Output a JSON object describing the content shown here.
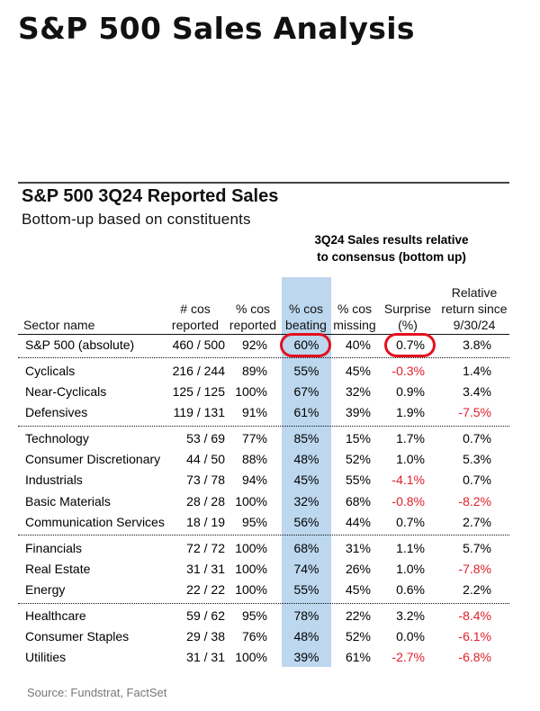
{
  "title": "S&P 500 Sales Analysis",
  "chart_data": {
    "type": "table",
    "title": "S&P 500 3Q24 Reported Sales",
    "subtitle": "Bottom-up based on constituents",
    "group_header": [
      "3Q24 Sales results relative",
      "to consensus (bottom up)"
    ],
    "columns": {
      "sector": [
        "Sector name"
      ],
      "reported": [
        "# cos",
        "reported"
      ],
      "pct_reported": [
        "% cos",
        "reported"
      ],
      "pct_beating": [
        "% cos",
        "beating"
      ],
      "pct_missing": [
        "% cos",
        "missing"
      ],
      "surprise": [
        "Surprise",
        "(%)"
      ],
      "rel_return": [
        "Relative",
        "return since",
        "9/30/24"
      ]
    },
    "highlighted_column": "pct_beating",
    "circled_cells": [
      {
        "row": 0,
        "column": "pct_beating"
      },
      {
        "row": 0,
        "column": "surprise"
      }
    ],
    "groups": [
      [
        {
          "sector": "S&P 500 (absolute)",
          "reported": "460 / 500",
          "pct_reported": "92%",
          "pct_beating": "60%",
          "pct_missing": "40%",
          "surprise": "0.7%",
          "rel_return": "3.8%"
        }
      ],
      [
        {
          "sector": "Cyclicals",
          "reported": "216 / 244",
          "pct_reported": "89%",
          "pct_beating": "55%",
          "pct_missing": "45%",
          "surprise": "-0.3%",
          "rel_return": "1.4%"
        },
        {
          "sector": "Near-Cyclicals",
          "reported": "125 / 125",
          "pct_reported": "100%",
          "pct_beating": "67%",
          "pct_missing": "32%",
          "surprise": "0.9%",
          "rel_return": "3.4%"
        },
        {
          "sector": "Defensives",
          "reported": "119 / 131",
          "pct_reported": "91%",
          "pct_beating": "61%",
          "pct_missing": "39%",
          "surprise": "1.9%",
          "rel_return": "-7.5%"
        }
      ],
      [
        {
          "sector": "Technology",
          "reported": "53 / 69",
          "pct_reported": "77%",
          "pct_beating": "85%",
          "pct_missing": "15%",
          "surprise": "1.7%",
          "rel_return": "0.7%"
        },
        {
          "sector": "Consumer Discretionary",
          "reported": "44 / 50",
          "pct_reported": "88%",
          "pct_beating": "48%",
          "pct_missing": "52%",
          "surprise": "1.0%",
          "rel_return": "5.3%"
        },
        {
          "sector": "Industrials",
          "reported": "73 / 78",
          "pct_reported": "94%",
          "pct_beating": "45%",
          "pct_missing": "55%",
          "surprise": "-4.1%",
          "rel_return": "0.7%"
        },
        {
          "sector": "Basic Materials",
          "reported": "28 / 28",
          "pct_reported": "100%",
          "pct_beating": "32%",
          "pct_missing": "68%",
          "surprise": "-0.8%",
          "rel_return": "-8.2%"
        },
        {
          "sector": "Communication Services",
          "reported": "18 / 19",
          "pct_reported": "95%",
          "pct_beating": "56%",
          "pct_missing": "44%",
          "surprise": "0.7%",
          "rel_return": "2.7%"
        }
      ],
      [
        {
          "sector": "Financials",
          "reported": "72 / 72",
          "pct_reported": "100%",
          "pct_beating": "68%",
          "pct_missing": "31%",
          "surprise": "1.1%",
          "rel_return": "5.7%"
        },
        {
          "sector": "Real Estate",
          "reported": "31 / 31",
          "pct_reported": "100%",
          "pct_beating": "74%",
          "pct_missing": "26%",
          "surprise": "1.0%",
          "rel_return": "-7.8%"
        },
        {
          "sector": "Energy",
          "reported": "22 / 22",
          "pct_reported": "100%",
          "pct_beating": "55%",
          "pct_missing": "45%",
          "surprise": "0.6%",
          "rel_return": "2.2%"
        }
      ],
      [
        {
          "sector": "Healthcare",
          "reported": "59 / 62",
          "pct_reported": "95%",
          "pct_beating": "78%",
          "pct_missing": "22%",
          "surprise": "3.2%",
          "rel_return": "-8.4%"
        },
        {
          "sector": "Consumer Staples",
          "reported": "29 / 38",
          "pct_reported": "76%",
          "pct_beating": "48%",
          "pct_missing": "52%",
          "surprise": "0.0%",
          "rel_return": "-6.1%"
        },
        {
          "sector": "Utilities",
          "reported": "31 / 31",
          "pct_reported": "100%",
          "pct_beating": "39%",
          "pct_missing": "61%",
          "surprise": "-2.7%",
          "rel_return": "-6.8%"
        }
      ]
    ],
    "source": "Source: Fundstrat, FactSet"
  },
  "colors": {
    "highlight": "#bcd7ee",
    "negative": "#e0202a",
    "circle": "#e3101e",
    "source_text": "#777777"
  }
}
